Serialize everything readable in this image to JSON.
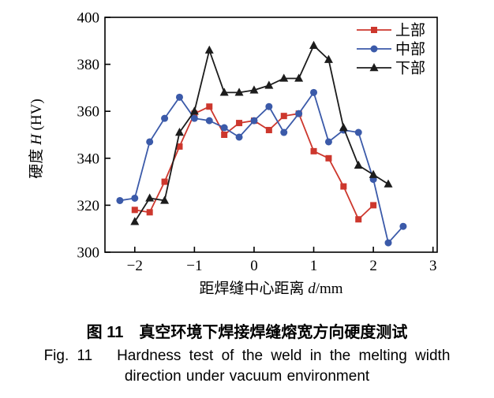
{
  "figure": {
    "caption_zh": "图 11　真空环境下焊接焊缝熔宽方向硬度测试",
    "caption_en_line1": "Fig. 11   Hardness test of the weld in the melting width",
    "caption_en_line2": "direction under vacuum environment"
  },
  "chart_data": {
    "type": "line",
    "title": "",
    "xlabel_parts": [
      "距焊缝中心距离 ",
      "d",
      "/mm"
    ],
    "ylabel_parts": [
      "硬度 ",
      "H",
      " (HV)"
    ],
    "xlim": [
      -2.5,
      3.07
    ],
    "ylim": [
      300,
      400
    ],
    "xticks": [
      -2,
      -1,
      0,
      1,
      2,
      3
    ],
    "yticks": [
      300,
      320,
      340,
      360,
      380,
      400
    ],
    "grid": false,
    "legend_position": "top-right-inside",
    "axis_color": "#000000",
    "series": [
      {
        "name": "上部",
        "slug": "upper",
        "marker": "square",
        "color": "#cd372d",
        "x": [
          -2,
          -1.75,
          -1.5,
          -1.25,
          -1,
          -0.75,
          -0.5,
          -0.25,
          0,
          0.25,
          0.5,
          0.75,
          1,
          1.25,
          1.5,
          1.75,
          2
        ],
        "y": [
          318,
          317,
          330,
          345,
          359,
          362,
          350,
          355,
          356,
          352,
          358,
          359,
          343,
          340,
          328,
          314,
          320
        ]
      },
      {
        "name": "中部",
        "slug": "middle",
        "marker": "circle",
        "color": "#3b5aa9",
        "x": [
          -2.25,
          -2,
          -1.75,
          -1.5,
          -1.25,
          -1,
          -0.75,
          -0.5,
          -0.25,
          0,
          0.25,
          0.5,
          0.75,
          1,
          1.25,
          1.5,
          1.75,
          2,
          2.25,
          2.5
        ],
        "y": [
          322,
          323,
          347,
          357,
          366,
          357,
          356,
          353,
          349,
          356,
          362,
          351,
          359,
          368,
          347,
          352,
          351,
          331,
          304,
          311
        ]
      },
      {
        "name": "下部",
        "slug": "lower",
        "marker": "triangle",
        "color": "#1c1c1c",
        "x": [
          -2,
          -1.75,
          -1.5,
          -1.25,
          -1,
          -0.75,
          -0.5,
          -0.25,
          0,
          0.25,
          0.5,
          0.75,
          1,
          1.25,
          1.5,
          1.75,
          2,
          2.25
        ],
        "y": [
          313,
          323,
          322,
          351,
          360,
          386,
          368,
          368,
          369,
          371,
          374,
          374,
          388,
          382,
          353,
          337,
          333,
          329
        ]
      }
    ]
  }
}
